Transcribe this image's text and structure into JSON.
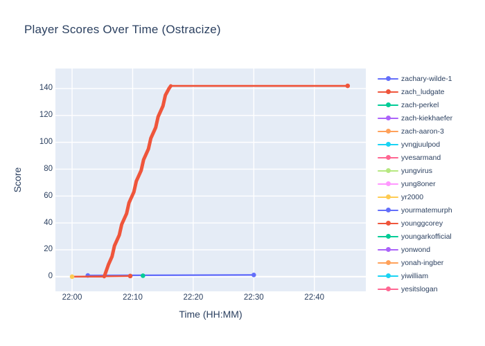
{
  "title": "Player Scores Over Time (Ostracize)",
  "colors": {
    "text": "#2a3f5f",
    "plot_bg": "#e5ecf6",
    "grid": "#ffffff",
    "page_bg": "#ffffff"
  },
  "axes": {
    "x_label": "Time (HH:MM)",
    "y_label": "Score",
    "x_ticks": [
      {
        "label": "22:00",
        "min": 0
      },
      {
        "label": "22:10",
        "min": 10
      },
      {
        "label": "22:20",
        "min": 20
      },
      {
        "label": "22:30",
        "min": 30
      },
      {
        "label": "22:40",
        "min": 40
      }
    ],
    "y_ticks": [
      0,
      20,
      40,
      60,
      80,
      100,
      120,
      140
    ]
  },
  "legend": {
    "items": [
      {
        "label": "zachary-wilde-1",
        "color": "#636EFA"
      },
      {
        "label": "zach_ludgate",
        "color": "#EF553B"
      },
      {
        "label": "zach-perkel",
        "color": "#00CC96"
      },
      {
        "label": "zach-kiekhaefer",
        "color": "#AB63FA"
      },
      {
        "label": "zach-aaron-3",
        "color": "#FFA15A"
      },
      {
        "label": "yvngjuulpod",
        "color": "#19D3F3"
      },
      {
        "label": "yvesarmand",
        "color": "#FF6692"
      },
      {
        "label": "yungvirus",
        "color": "#B6E880"
      },
      {
        "label": "yung8oner",
        "color": "#FF97FF"
      },
      {
        "label": "yr2000",
        "color": "#FECB52"
      },
      {
        "label": "yourmatemurph",
        "color": "#636EFA"
      },
      {
        "label": "younggcorey",
        "color": "#EF553B"
      },
      {
        "label": "youngarkofficial",
        "color": "#00CC96"
      },
      {
        "label": "yonwond",
        "color": "#AB63FA"
      },
      {
        "label": "yonah-ingber",
        "color": "#FFA15A"
      },
      {
        "label": "yiwilliam",
        "color": "#19D3F3"
      },
      {
        "label": "yesitslogan",
        "color": "#FF6692"
      }
    ]
  },
  "chart_data": {
    "type": "line",
    "title": "Player Scores Over Time (Ostracize)",
    "xlabel": "Time (HH:MM)",
    "ylabel": "Score",
    "grid": true,
    "legend_position": "right",
    "x_axis_start_time": "22:00",
    "x_unit": "minutes after 22:00",
    "x_range_minutes": [
      -2.75,
      48.5
    ],
    "ylim": [
      -10.9,
      154.9
    ],
    "series": [
      {
        "name": "zachary-wilde-1",
        "color": "#636EFA",
        "width": 2.4,
        "markers": "ends",
        "points_min_after_2200": [
          [
            2.6,
            0.9
          ],
          [
            30,
            1.3
          ]
        ]
      },
      {
        "name": "zach_ludgate",
        "color": "#EF553B",
        "markers": "last",
        "segments": [
          {
            "width": 2.4,
            "points_min_after_2200": [
              [
                0,
                0
              ],
              [
                5.3,
                0
              ]
            ]
          },
          {
            "width": 5,
            "points_min_after_2200": [
              [
                5.3,
                0
              ],
              [
                6.0,
                9
              ],
              [
                6.6,
                15
              ],
              [
                7.0,
                23
              ],
              [
                7.8,
                31
              ],
              [
                8.2,
                39
              ],
              [
                9.0,
                47
              ],
              [
                9.4,
                55
              ],
              [
                10.2,
                63
              ],
              [
                10.6,
                71
              ],
              [
                11.4,
                79
              ],
              [
                11.8,
                87
              ],
              [
                12.6,
                95
              ],
              [
                13.0,
                103
              ],
              [
                13.8,
                111
              ],
              [
                14.2,
                119
              ],
              [
                15.0,
                127
              ],
              [
                15.4,
                135
              ],
              [
                16.0,
                140
              ],
              [
                16.3,
                142
              ]
            ]
          },
          {
            "width": 2.8,
            "points_min_after_2200": [
              [
                16.3,
                142
              ],
              [
                45.5,
                142
              ]
            ]
          }
        ]
      },
      {
        "name": "younggcorey",
        "color": "#EF553B",
        "width": 2.4,
        "markers": "last",
        "points_min_after_2200": [
          [
            0,
            0
          ],
          [
            9.6,
            0.5
          ]
        ]
      },
      {
        "name": "zach-perkel",
        "color": "#00CC96",
        "width": 2.4,
        "markers": "all",
        "points_min_after_2200": [
          [
            11.7,
            0.7
          ]
        ]
      },
      {
        "name": "yr2000",
        "color": "#FECB52",
        "width": 2.4,
        "markers": "all",
        "points_min_after_2200": [
          [
            0,
            0
          ]
        ]
      }
    ]
  }
}
